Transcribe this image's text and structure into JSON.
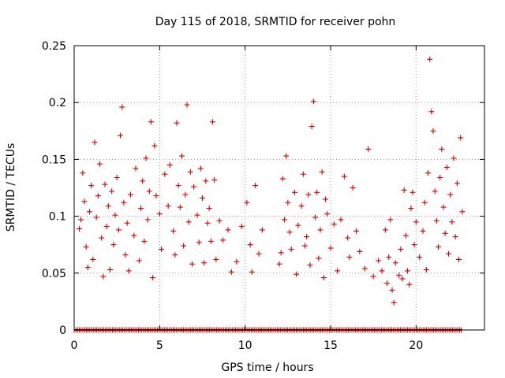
{
  "chart_data": {
    "type": "scatter",
    "title": "Day 115 of 2018, SRMTID for receiver pohn",
    "xlabel": "GPS time / hours",
    "ylabel": "SRMTID / TECUs",
    "xlim": [
      0,
      24
    ],
    "ylim": [
      0,
      0.25
    ],
    "x_ticks": [
      {
        "value": 0,
        "label": "0"
      },
      {
        "value": 5,
        "label": "5"
      },
      {
        "value": 10,
        "label": "10"
      },
      {
        "value": 15,
        "label": "15"
      },
      {
        "value": 20,
        "label": "20"
      }
    ],
    "y_ticks": [
      {
        "value": 0,
        "label": "0"
      },
      {
        "value": 0.05,
        "label": "0.05"
      },
      {
        "value": 0.1,
        "label": "0.1"
      },
      {
        "value": 0.15,
        "label": "0.15"
      },
      {
        "value": 0.2,
        "label": "0.2"
      },
      {
        "value": 0.25,
        "label": "0.25"
      }
    ],
    "grid": true,
    "marker": "+",
    "color": "#d00000",
    "zero_baseline": {
      "value": 0,
      "x_range": [
        0,
        22.7
      ]
    },
    "series": [
      {
        "name": "SRMTID",
        "points": [
          [
            0.3,
            0.089
          ],
          [
            0.4,
            0.097
          ],
          [
            0.5,
            0.138
          ],
          [
            0.6,
            0.113
          ],
          [
            0.7,
            0.073
          ],
          [
            0.8,
            0.055
          ],
          [
            0.9,
            0.104
          ],
          [
            1.0,
            0.127
          ],
          [
            1.1,
            0.062
          ],
          [
            1.2,
            0.165
          ],
          [
            1.3,
            0.099
          ],
          [
            1.4,
            0.118
          ],
          [
            1.5,
            0.146
          ],
          [
            1.6,
            0.081
          ],
          [
            1.7,
            0.047
          ],
          [
            1.8,
            0.128
          ],
          [
            1.9,
            0.091
          ],
          [
            2.0,
            0.109
          ],
          [
            2.1,
            0.053
          ],
          [
            2.2,
            0.122
          ],
          [
            2.3,
            0.075
          ],
          [
            2.4,
            0.101
          ],
          [
            2.5,
            0.134
          ],
          [
            2.6,
            0.088
          ],
          [
            2.7,
            0.171
          ],
          [
            2.8,
            0.196
          ],
          [
            2.9,
            0.112
          ],
          [
            3.0,
            0.066
          ],
          [
            3.1,
            0.094
          ],
          [
            3.2,
            0.052
          ],
          [
            3.3,
            0.119
          ],
          [
            3.5,
            0.083
          ],
          [
            3.6,
            0.142
          ],
          [
            3.8,
            0.061
          ],
          [
            3.9,
            0.107
          ],
          [
            4.0,
            0.131
          ],
          [
            4.1,
            0.078
          ],
          [
            4.2,
            0.151
          ],
          [
            4.3,
            0.097
          ],
          [
            4.4,
            0.122
          ],
          [
            4.5,
            0.183
          ],
          [
            4.6,
            0.046
          ],
          [
            4.7,
            0.162
          ],
          [
            4.8,
            0.118
          ],
          [
            5.0,
            0.102
          ],
          [
            5.1,
            0.071
          ],
          [
            5.3,
            0.137
          ],
          [
            5.5,
            0.109
          ],
          [
            5.6,
            0.145
          ],
          [
            5.8,
            0.087
          ],
          [
            5.9,
            0.066
          ],
          [
            6.0,
            0.182
          ],
          [
            6.1,
            0.127
          ],
          [
            6.2,
            0.108
          ],
          [
            6.3,
            0.153
          ],
          [
            6.4,
            0.074
          ],
          [
            6.5,
            0.119
          ],
          [
            6.6,
            0.198
          ],
          [
            6.7,
            0.095
          ],
          [
            6.8,
            0.139
          ],
          [
            6.9,
            0.058
          ],
          [
            7.0,
            0.126
          ],
          [
            7.2,
            0.101
          ],
          [
            7.3,
            0.077
          ],
          [
            7.4,
            0.142
          ],
          [
            7.5,
            0.116
          ],
          [
            7.6,
            0.059
          ],
          [
            7.7,
            0.131
          ],
          [
            7.8,
            0.094
          ],
          [
            7.9,
            0.107
          ],
          [
            8.0,
            0.078
          ],
          [
            8.1,
            0.183
          ],
          [
            8.2,
            0.132
          ],
          [
            8.3,
            0.062
          ],
          [
            8.5,
            0.096
          ],
          [
            8.7,
            0.079
          ],
          [
            9.0,
            0.088
          ],
          [
            9.2,
            0.051
          ],
          [
            9.5,
            0.06
          ],
          [
            9.8,
            0.091
          ],
          [
            10.1,
            0.112
          ],
          [
            10.3,
            0.075
          ],
          [
            10.4,
            0.051
          ],
          [
            10.6,
            0.127
          ],
          [
            10.8,
            0.067
          ],
          [
            11.0,
            0.088
          ],
          [
            12.0,
            0.058
          ],
          [
            12.1,
            0.068
          ],
          [
            12.2,
            0.133
          ],
          [
            12.3,
            0.097
          ],
          [
            12.4,
            0.153
          ],
          [
            12.5,
            0.112
          ],
          [
            12.6,
            0.086
          ],
          [
            12.7,
            0.071
          ],
          [
            12.9,
            0.121
          ],
          [
            13.0,
            0.049
          ],
          [
            13.1,
            0.092
          ],
          [
            13.3,
            0.109
          ],
          [
            13.4,
            0.137
          ],
          [
            13.5,
            0.074
          ],
          [
            13.6,
            0.082
          ],
          [
            13.7,
            0.119
          ],
          [
            13.8,
            0.057
          ],
          [
            13.9,
            0.179
          ],
          [
            14.0,
            0.201
          ],
          [
            14.1,
            0.099
          ],
          [
            14.2,
            0.121
          ],
          [
            14.3,
            0.063
          ],
          [
            14.4,
            0.088
          ],
          [
            14.5,
            0.139
          ],
          [
            14.6,
            0.046
          ],
          [
            14.7,
            0.115
          ],
          [
            14.8,
            0.102
          ],
          [
            15.0,
            0.072
          ],
          [
            15.2,
            0.093
          ],
          [
            15.4,
            0.052
          ],
          [
            15.6,
            0.097
          ],
          [
            15.8,
            0.135
          ],
          [
            16.0,
            0.081
          ],
          [
            16.1,
            0.064
          ],
          [
            16.3,
            0.125
          ],
          [
            16.5,
            0.087
          ],
          [
            16.7,
            0.069
          ],
          [
            17.0,
            0.054
          ],
          [
            17.2,
            0.159
          ],
          [
            17.5,
            0.047
          ],
          [
            17.8,
            0.061
          ],
          [
            18.0,
            0.052
          ],
          [
            18.2,
            0.088
          ],
          [
            18.3,
            0.041
          ],
          [
            18.4,
            0.064
          ],
          [
            18.5,
            0.097
          ],
          [
            18.6,
            0.035
          ],
          [
            18.7,
            0.024
          ],
          [
            18.8,
            0.059
          ],
          [
            19.0,
            0.048
          ],
          [
            19.1,
            0.071
          ],
          [
            19.2,
            0.045
          ],
          [
            19.3,
            0.123
          ],
          [
            19.4,
            0.083
          ],
          [
            19.5,
            0.052
          ],
          [
            19.6,
            0.04
          ],
          [
            19.7,
            0.107
          ],
          [
            19.8,
            0.121
          ],
          [
            19.9,
            0.075
          ],
          [
            20.0,
            0.095
          ],
          [
            20.2,
            0.064
          ],
          [
            20.4,
            0.087
          ],
          [
            20.5,
            0.112
          ],
          [
            20.6,
            0.053
          ],
          [
            20.7,
            0.138
          ],
          [
            20.8,
            0.238
          ],
          [
            20.9,
            0.192
          ],
          [
            21.0,
            0.175
          ],
          [
            21.1,
            0.122
          ],
          [
            21.2,
            0.096
          ],
          [
            21.3,
            0.073
          ],
          [
            21.4,
            0.134
          ],
          [
            21.5,
            0.159
          ],
          [
            21.6,
            0.108
          ],
          [
            21.7,
            0.085
          ],
          [
            21.8,
            0.143
          ],
          [
            21.9,
            0.067
          ],
          [
            22.0,
            0.119
          ],
          [
            22.1,
            0.095
          ],
          [
            22.2,
            0.151
          ],
          [
            22.3,
            0.082
          ],
          [
            22.4,
            0.129
          ],
          [
            22.5,
            0.062
          ],
          [
            22.6,
            0.169
          ],
          [
            22.7,
            0.104
          ]
        ]
      }
    ]
  }
}
